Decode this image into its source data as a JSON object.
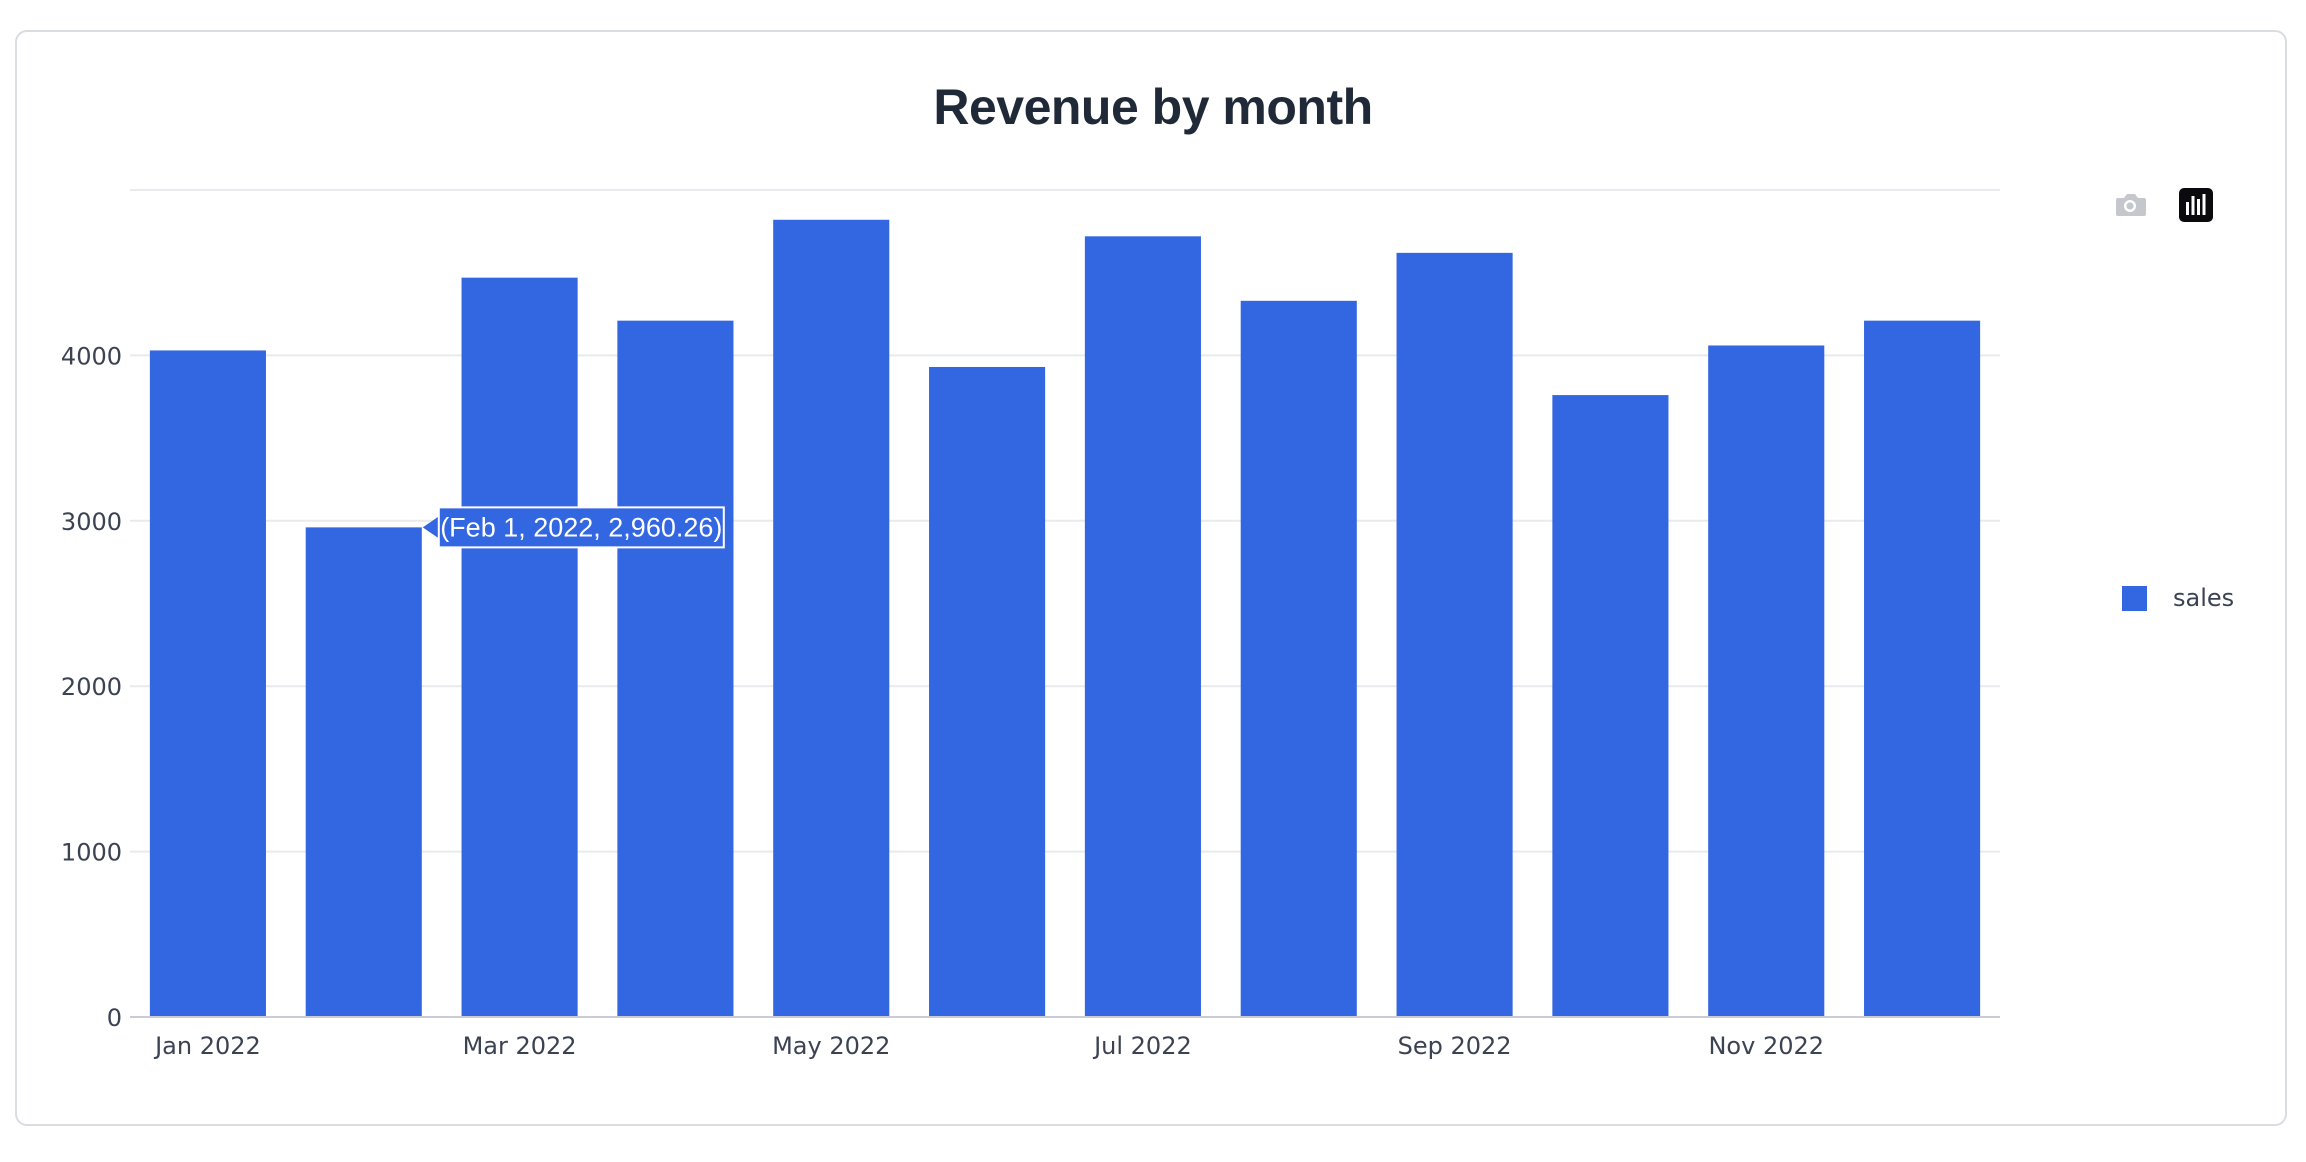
{
  "chart_data": {
    "type": "bar",
    "title": "Revenue by month",
    "categories": [
      "Jan 2022",
      "Feb 2022",
      "Mar 2022",
      "Apr 2022",
      "May 2022",
      "Jun 2022",
      "Jul 2022",
      "Aug 2022",
      "Sep 2022",
      "Oct 2022",
      "Nov 2022",
      "Dec 2022"
    ],
    "x_tick_labels": [
      "Jan 2022",
      "Mar 2022",
      "May 2022",
      "Jul 2022",
      "Sep 2022",
      "Nov 2022"
    ],
    "x_tick_positions": [
      "Jan 2022",
      "Mar 2022",
      "May 2022",
      "Jul 2022",
      "Sep 2022",
      "Nov 2022"
    ],
    "series": [
      {
        "name": "sales",
        "values": [
          4030,
          2960.26,
          4470,
          4210,
          4820,
          3930,
          4720,
          4330,
          4620,
          3760,
          4060,
          4210
        ]
      }
    ],
    "y_ticks": [
      0,
      1000,
      2000,
      3000,
      4000
    ],
    "y_tick_labels": [
      "0",
      "1000",
      "2000",
      "3000",
      "4000"
    ],
    "ylim": [
      0,
      5000
    ],
    "xlabel": "",
    "ylabel": "",
    "grid": true,
    "legend_position": "right",
    "bar_color": "#3366e1",
    "tooltip": {
      "text": "(Feb 1, 2022, 2,960.26)",
      "category": "Feb 2022"
    }
  },
  "legend": {
    "label": "sales"
  },
  "modebar": {
    "buttons": [
      {
        "icon": "camera-icon",
        "active": false
      },
      {
        "icon": "bar-chart-icon",
        "active": true
      }
    ]
  },
  "colors": {
    "bar": "#3366e1",
    "grid": "#e8eaee",
    "axis": "#c9ccd2",
    "title": "#1f2937",
    "text": "#3b4252"
  }
}
